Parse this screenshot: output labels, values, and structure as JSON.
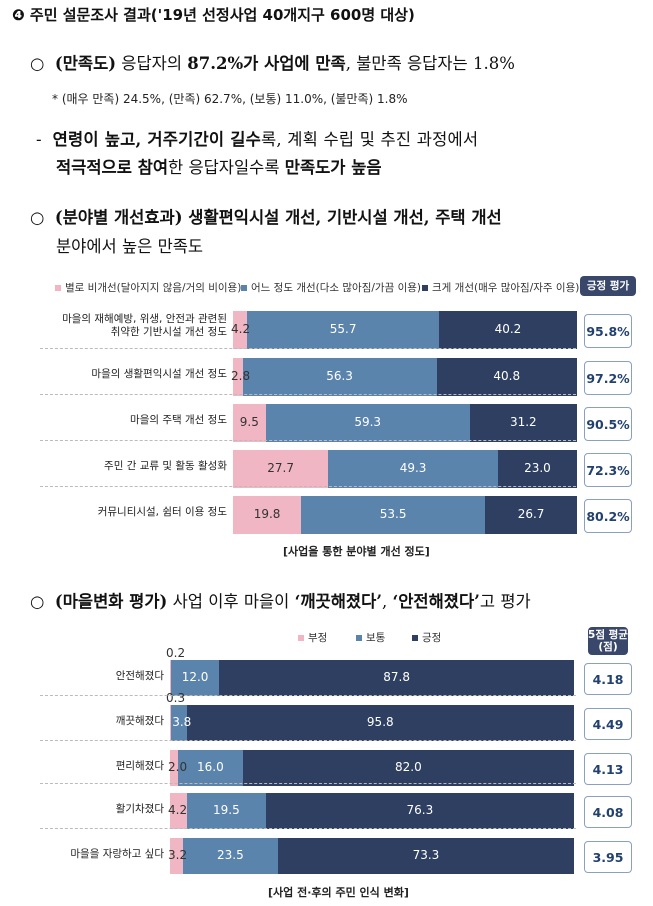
{
  "heading": "❹ 주민 설문조사 결과('19년 선정사업 40개지구 600명 대상)",
  "p1": {
    "bullet": "○",
    "a": "(만족도)",
    "b": " 응답자의 ",
    "c": "87.2%가 사업에 만족",
    "d": ", 불만족 응답자는 1.8%"
  },
  "p1_note": "* (매우 만족) 24.5%, (만족) 62.7%, (보통) 11.0%, (불만족) 1.8%",
  "p2": {
    "dash": "-",
    "a": "연령이 높고, 거주기간이 길수",
    "b": "록, 계획 수립 및 추진 과정에서",
    "c": "적극적으로 참여",
    "d": "한 응답자일수록 ",
    "e": "만족도가 높음"
  },
  "p3": {
    "bullet": "○",
    "a": "(분야별 개선효과) 생활편익시설 개선, 기반시설 개선, 주택 개선",
    "b": "분야에서 높은 만족도"
  },
  "chart1": {
    "legend": [
      "별로 비개선(달아지지 않음/거의 비이용)",
      "어느 정도 개선(다소 많아짐/가끔 이용)",
      "크게 개선(매우 많아짐/자주 이용)"
    ],
    "score_header": "긍정 평가",
    "caption": "[사업을 통한 분야별 개선 정도]",
    "colors": {
      "neg": "#f1b6c4",
      "mid": "#5b84ad",
      "pos": "#2e3f61"
    }
  },
  "chart_data": [
    {
      "type": "bar",
      "categories": [
        "마을의 재해예방, 위생, 안전과 관련된 취약한 기반시설 개선 정도",
        "마을의 생활편익시설 개선 정도",
        "마을의 주택 개선 정도",
        "주민 간 교류 및 활동 활성화",
        "커뮤니티시설, 쉼터 이용 정도"
      ],
      "labels": [
        [
          "마을의 재해예방, 위생, 안전과 관련된",
          "취약한 기반시설 개선 정도"
        ],
        [
          "마을의 생활편익시설 개선 정도"
        ],
        [
          "마을의 주택 개선 정도"
        ],
        [
          "주민 간 교류 및 활동 활성화"
        ],
        [
          "커뮤니티시설, 쉼터 이용 정도"
        ]
      ],
      "series": [
        {
          "name": "별로 비개선(달아지지 않음/거의 비이용)",
          "values": [
            4.2,
            2.8,
            9.5,
            27.7,
            19.8
          ]
        },
        {
          "name": "어느 정도 개선(다소 많아짐/가끔 이용)",
          "values": [
            55.7,
            56.3,
            59.3,
            49.3,
            53.5
          ]
        },
        {
          "name": "크게 개선(매우 많아짐/자주 이용)",
          "values": [
            40.2,
            40.8,
            31.2,
            23.0,
            26.7
          ]
        }
      ],
      "display": [
        [
          "4.2",
          "55.7",
          "40.2"
        ],
        [
          "2.8",
          "56.3",
          "40.8"
        ],
        [
          "9.5",
          "59.3",
          "31.2"
        ],
        [
          "27.7",
          "49.3",
          "23.0"
        ],
        [
          "19.8",
          "53.5",
          "26.7"
        ]
      ],
      "scores": [
        "95.8%",
        "97.2%",
        "90.5%",
        "72.3%",
        "80.2%"
      ],
      "stacked": true,
      "orientation": "horizontal"
    },
    {
      "type": "bar",
      "categories": [
        "안전해졌다",
        "깨끗해졌다",
        "편리해졌다",
        "활기차졌다",
        "마을을 자랑하고 싶다"
      ],
      "labels": [
        [
          "안전해졌다"
        ],
        [
          "깨끗해졌다"
        ],
        [
          "편리해졌다"
        ],
        [
          "활기차졌다"
        ],
        [
          "마을을 자랑하고 싶다"
        ]
      ],
      "series": [
        {
          "name": "부정",
          "values": [
            0.2,
            0.3,
            2.0,
            4.2,
            3.2
          ]
        },
        {
          "name": "보통",
          "values": [
            12.0,
            3.8,
            16.0,
            19.5,
            23.5
          ]
        },
        {
          "name": "긍정",
          "values": [
            87.8,
            95.8,
            82.0,
            76.3,
            73.3
          ]
        }
      ],
      "display": [
        [
          "0.2",
          "12.0",
          "87.8"
        ],
        [
          "0.3",
          "3.8",
          "95.8"
        ],
        [
          "2.0",
          "16.0",
          "82.0"
        ],
        [
          "4.2",
          "19.5",
          "76.3"
        ],
        [
          "3.2",
          "23.5",
          "73.3"
        ]
      ],
      "scores": [
        "4.18",
        "4.49",
        "4.13",
        "4.08",
        "3.95"
      ],
      "stacked": true,
      "orientation": "horizontal"
    }
  ],
  "p4": {
    "bullet": "○",
    "a": "(마을변화 평가)",
    "b": " 사업 이후 마을이 ",
    "c": "‘깨끗해졌다’",
    "d": ", ",
    "e": "‘안전해졌다’",
    "f": "고 평가"
  },
  "chart2": {
    "legend": [
      "부정",
      "보통",
      "긍정"
    ],
    "score_header_1": "5점 평균",
    "score_header_2": "(점)",
    "caption": "[사업 전·후의 주민 인식 변화]"
  }
}
